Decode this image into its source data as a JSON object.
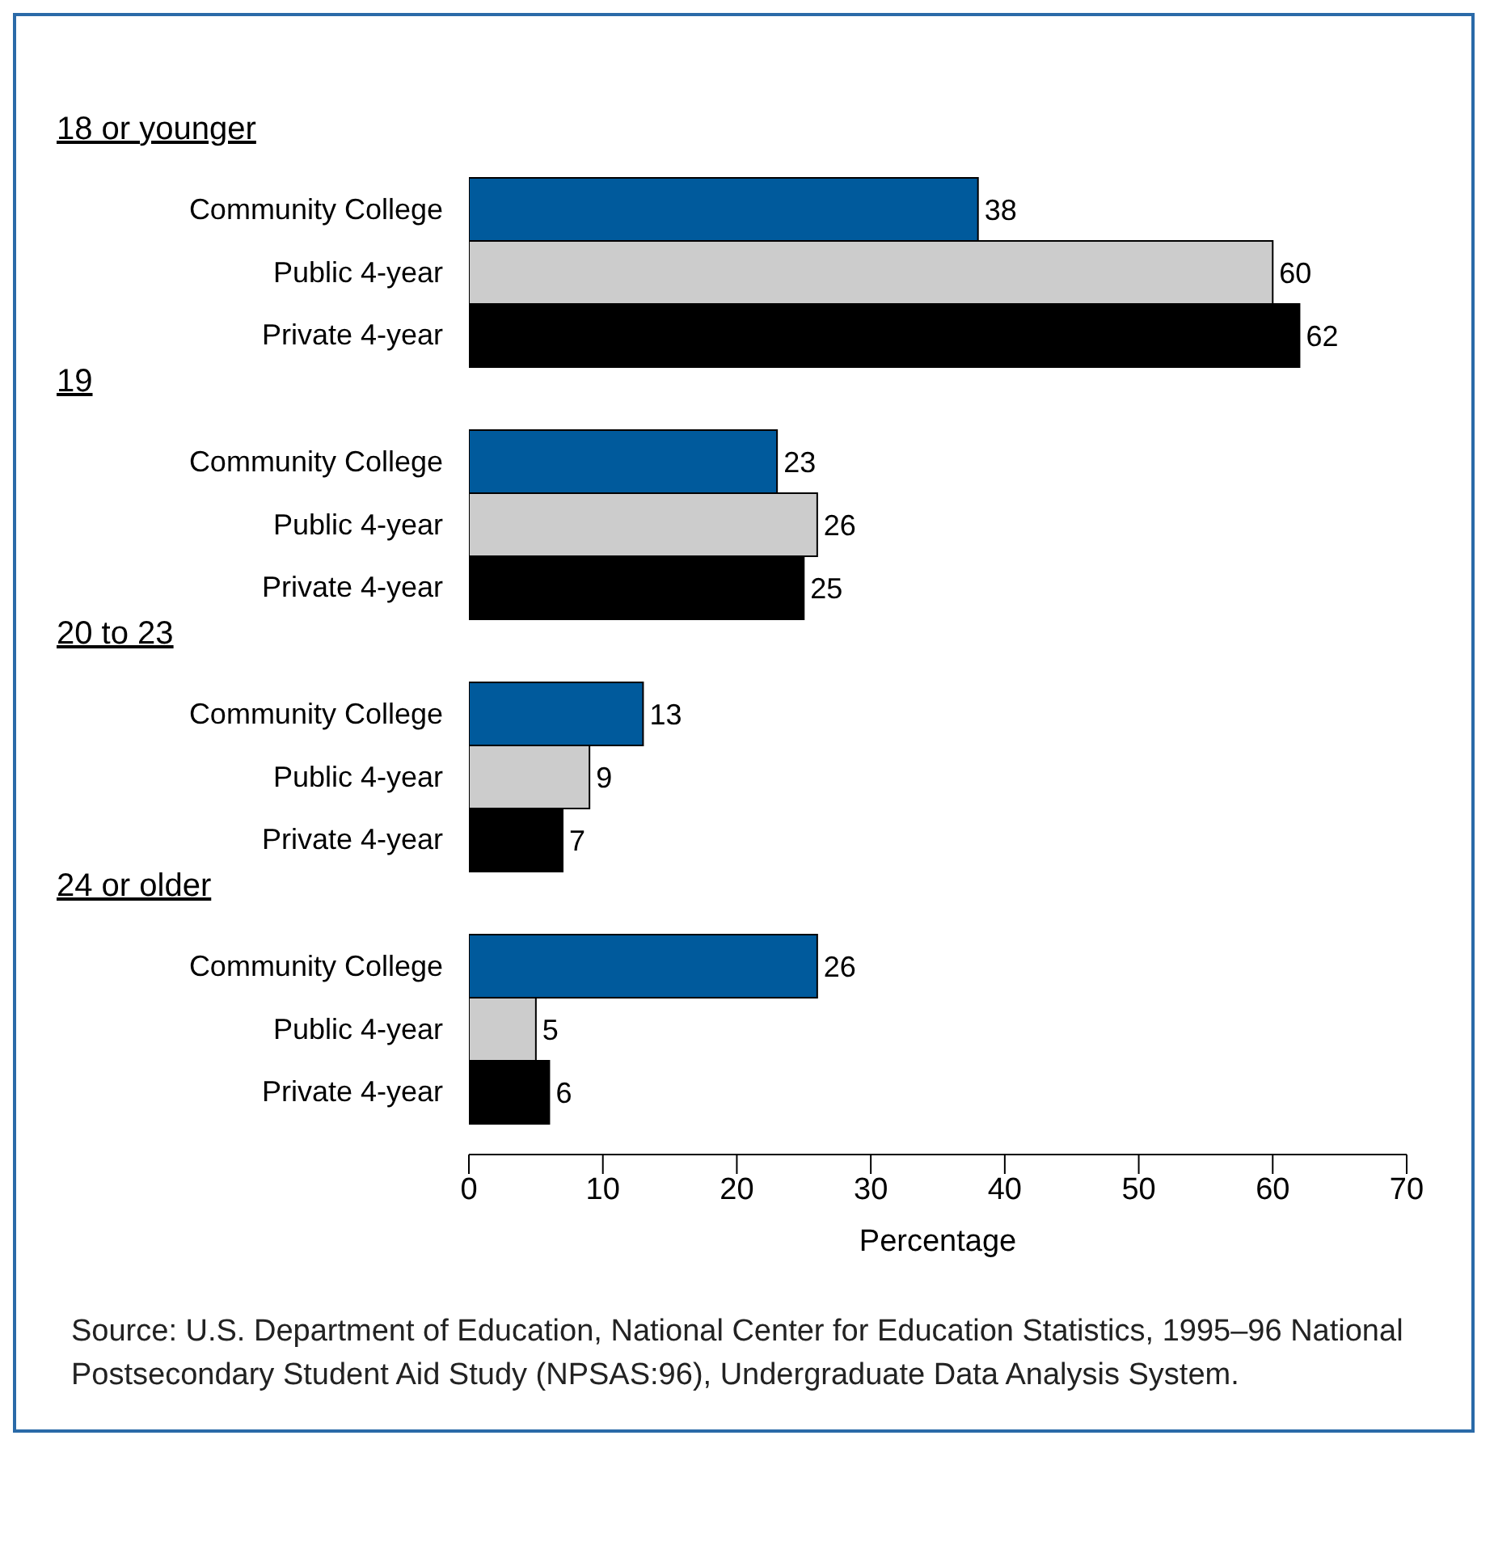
{
  "chart_data": {
    "type": "bar",
    "orientation": "horizontal",
    "categories": [
      "18 or younger",
      "19",
      "20 to 23",
      "24 or older"
    ],
    "series": [
      {
        "name": "Community College",
        "color": "#005a9c",
        "values": [
          38,
          23,
          13,
          26
        ]
      },
      {
        "name": "Public 4-year",
        "color": "#cccccc",
        "values": [
          60,
          26,
          9,
          5
        ]
      },
      {
        "name": "Private 4-year",
        "color": "#000000",
        "values": [
          62,
          25,
          7,
          6
        ]
      }
    ],
    "xlim": [
      0,
      70
    ],
    "xticks": [
      0,
      10,
      20,
      30,
      40,
      50,
      60,
      70
    ],
    "xlabel": "Percentage",
    "data_labels": true,
    "annotations": [
      "Source: U.S. Department of Education, National Center for Education Statistics, 1995–96 National Postsecondary Student Aid Study (NPSAS:96), Undergraduate Data Analysis System."
    ]
  }
}
